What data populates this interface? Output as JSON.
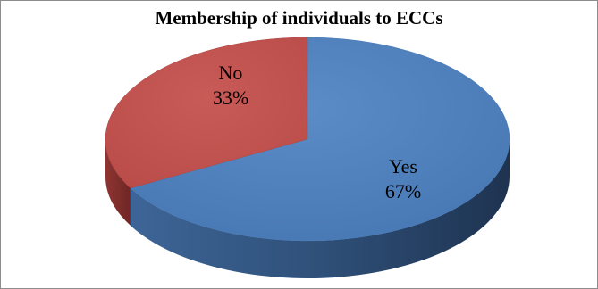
{
  "chart_data": {
    "type": "pie",
    "title": "Membership of individuals  to ECCs",
    "slices": [
      {
        "label": "Yes",
        "percent_label": "67%",
        "value": 67,
        "color": "#4f81bd",
        "side_color": "#2c4a70"
      },
      {
        "label": "No",
        "percent_label": "33%",
        "value": 33,
        "color": "#c0504d",
        "side_color": "#7d2c2a"
      }
    ],
    "legend": "none",
    "style": "3d"
  }
}
